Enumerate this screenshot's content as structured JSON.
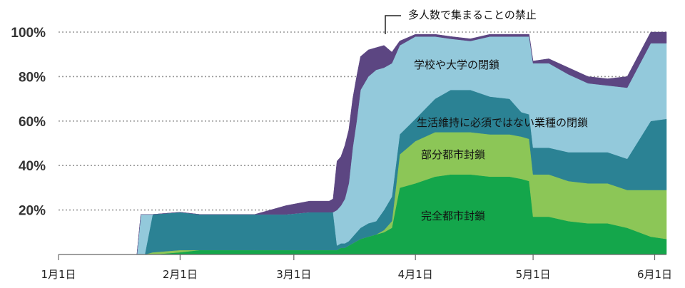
{
  "chart_data": {
    "type": "area",
    "stacked": true,
    "x_type": "date",
    "year": 2020,
    "ylim": [
      0,
      100
    ],
    "y_ticks": [
      20,
      40,
      60,
      80,
      100
    ],
    "y_tick_labels": [
      "20%",
      "40%",
      "60%",
      "80%",
      "100%"
    ],
    "grid": "dotted horizontal at y ticks",
    "x_ticks": [
      "2020-01-01",
      "2020-02-01",
      "2020-03-01",
      "2020-04-01",
      "2020-05-01",
      "2020-06-01"
    ],
    "x_tick_labels": [
      "1月1日",
      "2月1日",
      "3月1日",
      "4月1日",
      "5月1日",
      "6月1日"
    ],
    "x": [
      "2020-01-01",
      "2020-01-21",
      "2020-01-22",
      "2020-01-23",
      "2020-01-25",
      "2020-02-01",
      "2020-02-06",
      "2020-02-20",
      "2020-02-24",
      "2020-02-28",
      "2020-03-05",
      "2020-03-10",
      "2020-03-11",
      "2020-03-12",
      "2020-03-13",
      "2020-03-14",
      "2020-03-15",
      "2020-03-16",
      "2020-03-17",
      "2020-03-18",
      "2020-03-20",
      "2020-03-22",
      "2020-03-24",
      "2020-03-26",
      "2020-03-28",
      "2020-04-01",
      "2020-04-06",
      "2020-04-10",
      "2020-04-15",
      "2020-04-20",
      "2020-04-25",
      "2020-04-28",
      "2020-04-30",
      "2020-05-01",
      "2020-05-05",
      "2020-05-10",
      "2020-05-15",
      "2020-05-20",
      "2020-05-25",
      "2020-05-31",
      "2020-06-04"
    ],
    "series": [
      {
        "name": "完全都市封鎖",
        "color": "#14a64b",
        "values": [
          0,
          0,
          0,
          0,
          0,
          1,
          2,
          2,
          2,
          2,
          2,
          2,
          2,
          2,
          3,
          3,
          4,
          5,
          6,
          7,
          8,
          9,
          10,
          12,
          30,
          32,
          35,
          36,
          36,
          35,
          35,
          34,
          33,
          17,
          17,
          15,
          14,
          14,
          12,
          8,
          7
        ]
      },
      {
        "name": "部分都市封鎖",
        "color": "#8cc657",
        "values": [
          0,
          0,
          0,
          0,
          1,
          1,
          0,
          0,
          0,
          0,
          0,
          0,
          0,
          0,
          0,
          0,
          0,
          0,
          0,
          0,
          0,
          0,
          1,
          3,
          15,
          19,
          20,
          19,
          19,
          19,
          19,
          19,
          19,
          19,
          19,
          18,
          18,
          18,
          17,
          21,
          22
        ]
      },
      {
        "name": "生活維持に必須ではない業種の閉鎖",
        "color": "#2b8294",
        "values": [
          0,
          0,
          0,
          0,
          17,
          17,
          16,
          16,
          16,
          16,
          17,
          17,
          17,
          2,
          2,
          2,
          2,
          3,
          4,
          5,
          6,
          6,
          9,
          11,
          9,
          10,
          15,
          19,
          19,
          17,
          16,
          11,
          11,
          12,
          12,
          13,
          14,
          14,
          14,
          31,
          32
        ]
      },
      {
        "name": "学校や大学の閉鎖",
        "color": "#93c9db",
        "values": [
          0,
          0,
          18,
          18,
          0,
          0,
          0,
          0,
          0,
          0,
          0,
          0,
          0,
          16,
          17,
          20,
          26,
          40,
          50,
          62,
          66,
          68,
          64,
          60,
          40,
          37,
          28,
          23,
          22,
          27,
          28,
          34,
          35,
          38,
          38,
          35,
          31,
          30,
          32,
          35,
          34
        ]
      },
      {
        "name": "多人数で集まることの禁止",
        "color": "#5c4682",
        "values": [
          0,
          0,
          0,
          0,
          0,
          0,
          0,
          0,
          2,
          4,
          5,
          5,
          6,
          22,
          22,
          24,
          24,
          22,
          20,
          15,
          12,
          10,
          10,
          5,
          2,
          1,
          1,
          1,
          1,
          1,
          1,
          1,
          1,
          1,
          2,
          3,
          3,
          3,
          5,
          5,
          5
        ]
      }
    ],
    "annotations": [
      {
        "text": "多人数で集まることの禁止",
        "series": "多人数で集まることの禁止"
      },
      {
        "text": "学校や大学の閉鎖",
        "series": "学校や大学の閉鎖"
      },
      {
        "text": "生活維持に必須ではない業種の閉鎖",
        "series": "生活維持に必須ではない業種の閉鎖"
      },
      {
        "text": "部分都市封鎖",
        "series": "部分都市封鎖"
      },
      {
        "text": "完全都市封鎖",
        "series": "完全都市封鎖"
      }
    ]
  }
}
